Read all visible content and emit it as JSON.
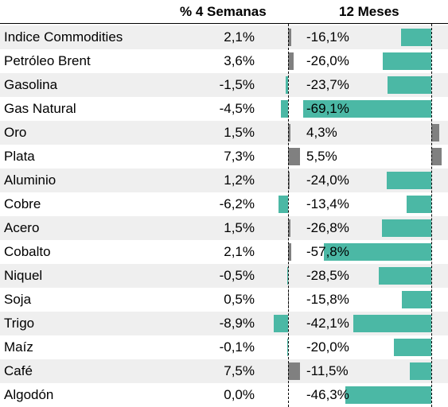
{
  "chart_data": {
    "type": "table",
    "columns": [
      "% 4 Semanas",
      "12 Meses"
    ],
    "rows": [
      {
        "name": "Indice Commodities",
        "w4": 2.1,
        "w4_label": "2,1%",
        "m12": -16.1,
        "m12_label": "-16,1%"
      },
      {
        "name": "Petróleo Brent",
        "w4": 3.6,
        "w4_label": "3,6%",
        "m12": -26.0,
        "m12_label": "-26,0%"
      },
      {
        "name": "Gasolina",
        "w4": -1.5,
        "w4_label": "-1,5%",
        "m12": -23.7,
        "m12_label": "-23,7%"
      },
      {
        "name": "Gas Natural",
        "w4": -4.5,
        "w4_label": "-4,5%",
        "m12": -69.1,
        "m12_label": "-69,1%"
      },
      {
        "name": "Oro",
        "w4": 1.5,
        "w4_label": "1,5%",
        "m12": 4.3,
        "m12_label": "4,3%"
      },
      {
        "name": "Plata",
        "w4": 7.3,
        "w4_label": "7,3%",
        "m12": 5.5,
        "m12_label": "5,5%"
      },
      {
        "name": "Aluminio",
        "w4": 1.2,
        "w4_label": "1,2%",
        "m12": -24.0,
        "m12_label": "-24,0%"
      },
      {
        "name": "Cobre",
        "w4": -6.2,
        "w4_label": "-6,2%",
        "m12": -13.4,
        "m12_label": "-13,4%"
      },
      {
        "name": "Acero",
        "w4": 1.5,
        "w4_label": "1,5%",
        "m12": -26.8,
        "m12_label": "-26,8%"
      },
      {
        "name": "Cobalto",
        "w4": 2.1,
        "w4_label": "2,1%",
        "m12": -57.8,
        "m12_label": "-57,8%"
      },
      {
        "name": "Niquel",
        "w4": -0.5,
        "w4_label": "-0,5%",
        "m12": -28.5,
        "m12_label": "-28,5%"
      },
      {
        "name": "Soja",
        "w4": 0.5,
        "w4_label": "0,5%",
        "m12": -15.8,
        "m12_label": "-15,8%"
      },
      {
        "name": "Trigo",
        "w4": -8.9,
        "w4_label": "-8,9%",
        "m12": -42.1,
        "m12_label": "-42,1%"
      },
      {
        "name": "Maíz",
        "w4": -0.1,
        "w4_label": "-0,1%",
        "m12": -20.0,
        "m12_label": "-20,0%"
      },
      {
        "name": "Café",
        "w4": 7.5,
        "w4_label": "7,5%",
        "m12": -11.5,
        "m12_label": "-11,5%"
      },
      {
        "name": "Algodón",
        "w4": 0.0,
        "w4_label": "0,0%",
        "m12": -46.3,
        "m12_label": "-46,3%"
      }
    ],
    "colors": {
      "positive": "#808080",
      "negative": "#4bb8a5",
      "row_shade": "#efefef"
    }
  }
}
